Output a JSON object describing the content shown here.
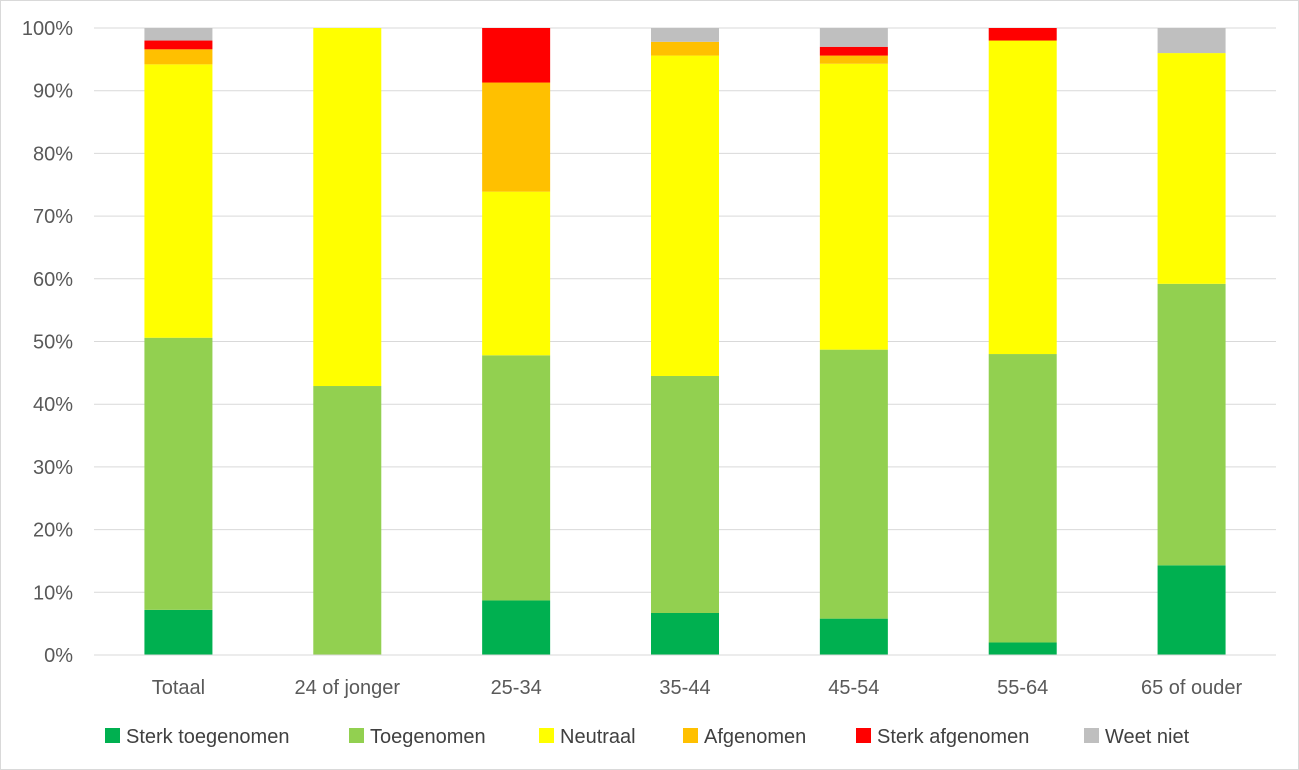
{
  "chart_data": {
    "type": "bar",
    "stacked": true,
    "percent_axis": true,
    "title": "",
    "xlabel": "",
    "ylabel": "",
    "ylim": [
      0,
      100
    ],
    "y_ticks": [
      "0%",
      "10%",
      "20%",
      "30%",
      "40%",
      "50%",
      "60%",
      "70%",
      "80%",
      "90%",
      "100%"
    ],
    "grid": true,
    "legend_position": "bottom",
    "categories": [
      "Totaal",
      "24 of jonger",
      "25-34",
      "35-44",
      "45-54",
      "55-64",
      "65 of ouder"
    ],
    "series": [
      {
        "name": "Sterk toegenomen",
        "color": "#00b050",
        "values": [
          7.2,
          0,
          8.7,
          6.7,
          5.8,
          2.0,
          14.3
        ]
      },
      {
        "name": "Toegenomen",
        "color": "#92d050",
        "values": [
          43.4,
          42.9,
          39.1,
          37.8,
          42.9,
          46.0,
          44.9
        ]
      },
      {
        "name": "Neutraal",
        "color": "#ffff00",
        "values": [
          43.6,
          57.1,
          26.1,
          51.1,
          45.6,
          50.0,
          36.8
        ]
      },
      {
        "name": "Afgenomen",
        "color": "#ffc000",
        "values": [
          2.4,
          0,
          17.4,
          2.2,
          1.3,
          0,
          0
        ]
      },
      {
        "name": "Sterk afgenomen",
        "color": "#ff0000",
        "values": [
          1.4,
          0,
          8.7,
          0,
          1.4,
          2.0,
          0
        ]
      },
      {
        "name": "Weet niet",
        "color": "#bfbfbf",
        "values": [
          2.0,
          0,
          0,
          2.2,
          3.0,
          0,
          4.0
        ]
      }
    ]
  }
}
